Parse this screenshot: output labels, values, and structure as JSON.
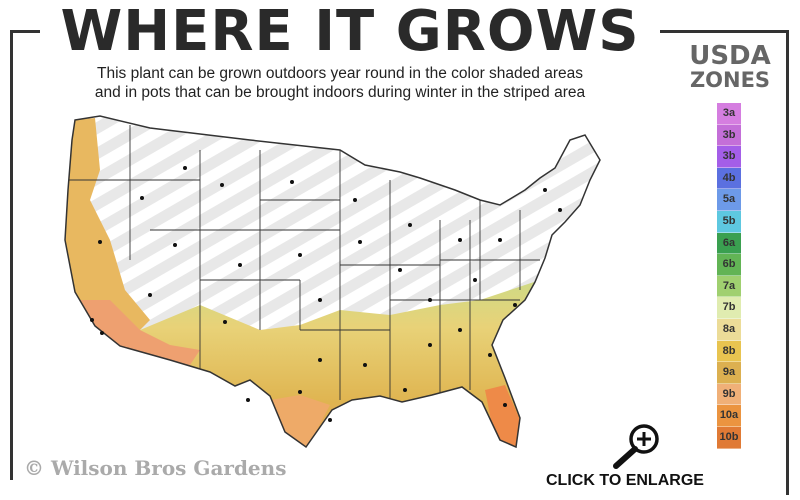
{
  "title": "WHERE IT GROWS",
  "subtitle_lines": [
    "This plant can be grown outdoors year round in the color shaded areas",
    "and in pots that can be brought indoors during winter in the striped area"
  ],
  "legend": {
    "title_line1": "USDA",
    "title_line2": "ZONES",
    "zones": [
      {
        "label": "3a",
        "color": "#d57ee0"
      },
      {
        "label": "3b",
        "color": "#c46fd8"
      },
      {
        "label": "3b",
        "color": "#a45ee8"
      },
      {
        "label": "4b",
        "color": "#5b70e0"
      },
      {
        "label": "5a",
        "color": "#6d9ae8"
      },
      {
        "label": "5b",
        "color": "#5ec8e0"
      },
      {
        "label": "6a",
        "color": "#3aa050"
      },
      {
        "label": "6b",
        "color": "#62b455"
      },
      {
        "label": "7a",
        "color": "#a0d070"
      },
      {
        "label": "7b",
        "color": "#e0ecb0"
      },
      {
        "label": "8a",
        "color": "#ecdc98"
      },
      {
        "label": "8b",
        "color": "#e8c450"
      },
      {
        "label": "9a",
        "color": "#dcb050"
      },
      {
        "label": "9b",
        "color": "#f0b078"
      },
      {
        "label": "10a",
        "color": "#eb9440"
      },
      {
        "label": "10b",
        "color": "#e07a35"
      }
    ]
  },
  "copyright": "© Wilson Bros Gardens",
  "enlarge_label": "CLICK TO ENLARGE"
}
